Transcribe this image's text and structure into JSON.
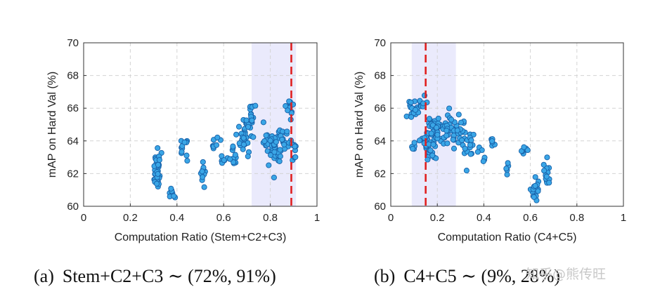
{
  "chart_data": [
    {
      "type": "scatter",
      "xlabel": "Computation Ratio (Stem+C2+C3)",
      "ylabel": "mAP on Hard Val (%)",
      "xlim": [
        0,
        1
      ],
      "ylim": [
        60,
        70
      ],
      "xticks": [
        "0",
        "0.2",
        "0.4",
        "0.6",
        "0.8",
        "1"
      ],
      "yticks": [
        "60",
        "62",
        "64",
        "66",
        "68",
        "70"
      ],
      "grid": true,
      "highlight_range": [
        0.72,
        0.91
      ],
      "reference_line_x": 0.89,
      "caption_label": "(a)",
      "caption_text": "Stem+C2+C3 ∼ (72%, 91%)",
      "clusters": [
        {
          "x": 0.315,
          "y": 62.1,
          "sx": 0.007,
          "sy": 0.55,
          "n": 40
        },
        {
          "x": 0.38,
          "y": 60.6,
          "sx": 0.005,
          "sy": 0.25,
          "n": 9
        },
        {
          "x": 0.42,
          "y": 63.4,
          "sx": 0.01,
          "sy": 0.3,
          "n": 8
        },
        {
          "x": 0.44,
          "y": 63.9,
          "sx": 0.006,
          "sy": 0.08,
          "n": 4
        },
        {
          "x": 0.51,
          "y": 62.0,
          "sx": 0.007,
          "sy": 0.3,
          "n": 12
        },
        {
          "x": 0.56,
          "y": 63.9,
          "sx": 0.01,
          "sy": 0.25,
          "n": 8
        },
        {
          "x": 0.6,
          "y": 62.9,
          "sx": 0.01,
          "sy": 0.3,
          "n": 6
        },
        {
          "x": 0.65,
          "y": 63.2,
          "sx": 0.015,
          "sy": 0.4,
          "n": 10
        },
        {
          "x": 0.68,
          "y": 64.2,
          "sx": 0.013,
          "sy": 0.45,
          "n": 28
        },
        {
          "x": 0.72,
          "y": 65.4,
          "sx": 0.01,
          "sy": 0.45,
          "n": 22
        },
        {
          "x": 0.78,
          "y": 64.0,
          "sx": 0.015,
          "sy": 0.4,
          "n": 15
        },
        {
          "x": 0.82,
          "y": 63.5,
          "sx": 0.012,
          "sy": 0.6,
          "n": 35
        },
        {
          "x": 0.86,
          "y": 63.9,
          "sx": 0.015,
          "sy": 0.5,
          "n": 20
        },
        {
          "x": 0.88,
          "y": 66.2,
          "sx": 0.008,
          "sy": 0.3,
          "n": 12
        },
        {
          "x": 0.905,
          "y": 63.6,
          "sx": 0.005,
          "sy": 0.4,
          "n": 10
        }
      ]
    },
    {
      "type": "scatter",
      "xlabel": "Computation Ratio (C4+C5)",
      "ylabel": "mAP on Hard Val (%)",
      "xlim": [
        0,
        1
      ],
      "ylim": [
        60,
        70
      ],
      "xticks": [
        "0",
        "0.2",
        "0.4",
        "0.6",
        "0.8",
        "1"
      ],
      "yticks": [
        "60",
        "62",
        "64",
        "66",
        "68",
        "70"
      ],
      "grid": true,
      "highlight_range": [
        0.09,
        0.28
      ],
      "reference_line_x": 0.15,
      "caption_label": "(b)",
      "caption_text": "C4+C5 ∼ (9%, 28%)",
      "clusters": [
        {
          "x": 0.1,
          "y": 65.9,
          "sx": 0.013,
          "sy": 0.25,
          "n": 18
        },
        {
          "x": 0.095,
          "y": 63.7,
          "sx": 0.006,
          "sy": 0.2,
          "n": 5
        },
        {
          "x": 0.135,
          "y": 66.2,
          "sx": 0.007,
          "sy": 0.3,
          "n": 8
        },
        {
          "x": 0.155,
          "y": 63.8,
          "sx": 0.01,
          "sy": 0.4,
          "n": 20
        },
        {
          "x": 0.175,
          "y": 64.3,
          "sx": 0.012,
          "sy": 0.8,
          "n": 30
        },
        {
          "x": 0.21,
          "y": 64.3,
          "sx": 0.013,
          "sy": 0.45,
          "n": 18
        },
        {
          "x": 0.26,
          "y": 64.6,
          "sx": 0.015,
          "sy": 0.55,
          "n": 25
        },
        {
          "x": 0.3,
          "y": 64.7,
          "sx": 0.01,
          "sy": 0.45,
          "n": 15
        },
        {
          "x": 0.34,
          "y": 63.7,
          "sx": 0.012,
          "sy": 0.5,
          "n": 15
        },
        {
          "x": 0.39,
          "y": 63.1,
          "sx": 0.008,
          "sy": 0.3,
          "n": 6
        },
        {
          "x": 0.44,
          "y": 64.0,
          "sx": 0.008,
          "sy": 0.15,
          "n": 6
        },
        {
          "x": 0.5,
          "y": 62.2,
          "sx": 0.006,
          "sy": 0.35,
          "n": 5
        },
        {
          "x": 0.575,
          "y": 63.4,
          "sx": 0.008,
          "sy": 0.15,
          "n": 8
        },
        {
          "x": 0.62,
          "y": 61.0,
          "sx": 0.01,
          "sy": 0.55,
          "n": 20
        },
        {
          "x": 0.67,
          "y": 61.9,
          "sx": 0.008,
          "sy": 0.45,
          "n": 14
        }
      ]
    }
  ],
  "watermark": "知乎@熊传旺"
}
